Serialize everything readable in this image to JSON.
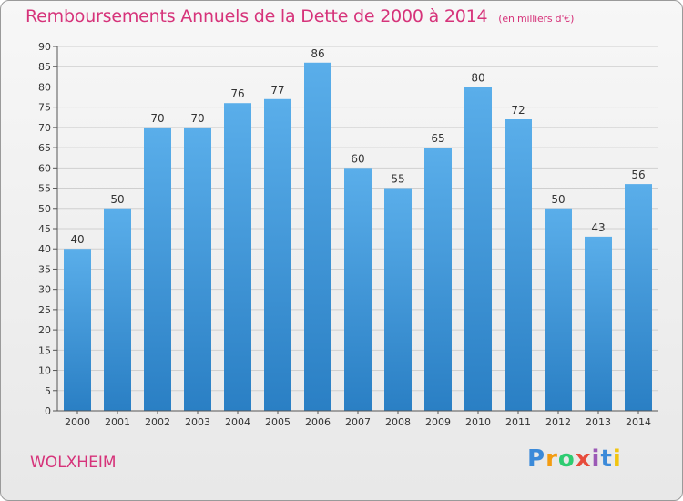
{
  "chart_data": {
    "type": "bar",
    "title": "Remboursements Annuels de la Dette de 2000 à 2014",
    "subtitle": "(en milliers d'€)",
    "categories": [
      "2000",
      "2001",
      "2002",
      "2003",
      "2004",
      "2005",
      "2006",
      "2007",
      "2008",
      "2009",
      "2010",
      "2011",
      "2012",
      "2013",
      "2014"
    ],
    "values": [
      40,
      50,
      70,
      70,
      76,
      77,
      86,
      60,
      55,
      65,
      80,
      72,
      50,
      43,
      56
    ],
    "ylim": [
      0,
      90
    ],
    "yticks": [
      0,
      5,
      10,
      15,
      20,
      25,
      30,
      35,
      40,
      45,
      50,
      55,
      60,
      65,
      70,
      75,
      80,
      85,
      90
    ],
    "xlabel": "",
    "ylabel": "",
    "grid": true,
    "colors": {
      "bar_top": "#5aaeea",
      "bar_bottom": "#2a7fc4",
      "grid": "#cfcfcf",
      "axis": "#555555"
    }
  },
  "commune": "WOLXHEIM",
  "logo": {
    "text": "Proxiti",
    "letters": [
      "P",
      "r",
      "o",
      "x",
      "i",
      "t",
      "i"
    ],
    "colors": [
      "#3b8ad9",
      "#f39c12",
      "#2ecc71",
      "#e74c3c",
      "#9b59b6",
      "#3b8ad9",
      "#f1c40f"
    ]
  }
}
